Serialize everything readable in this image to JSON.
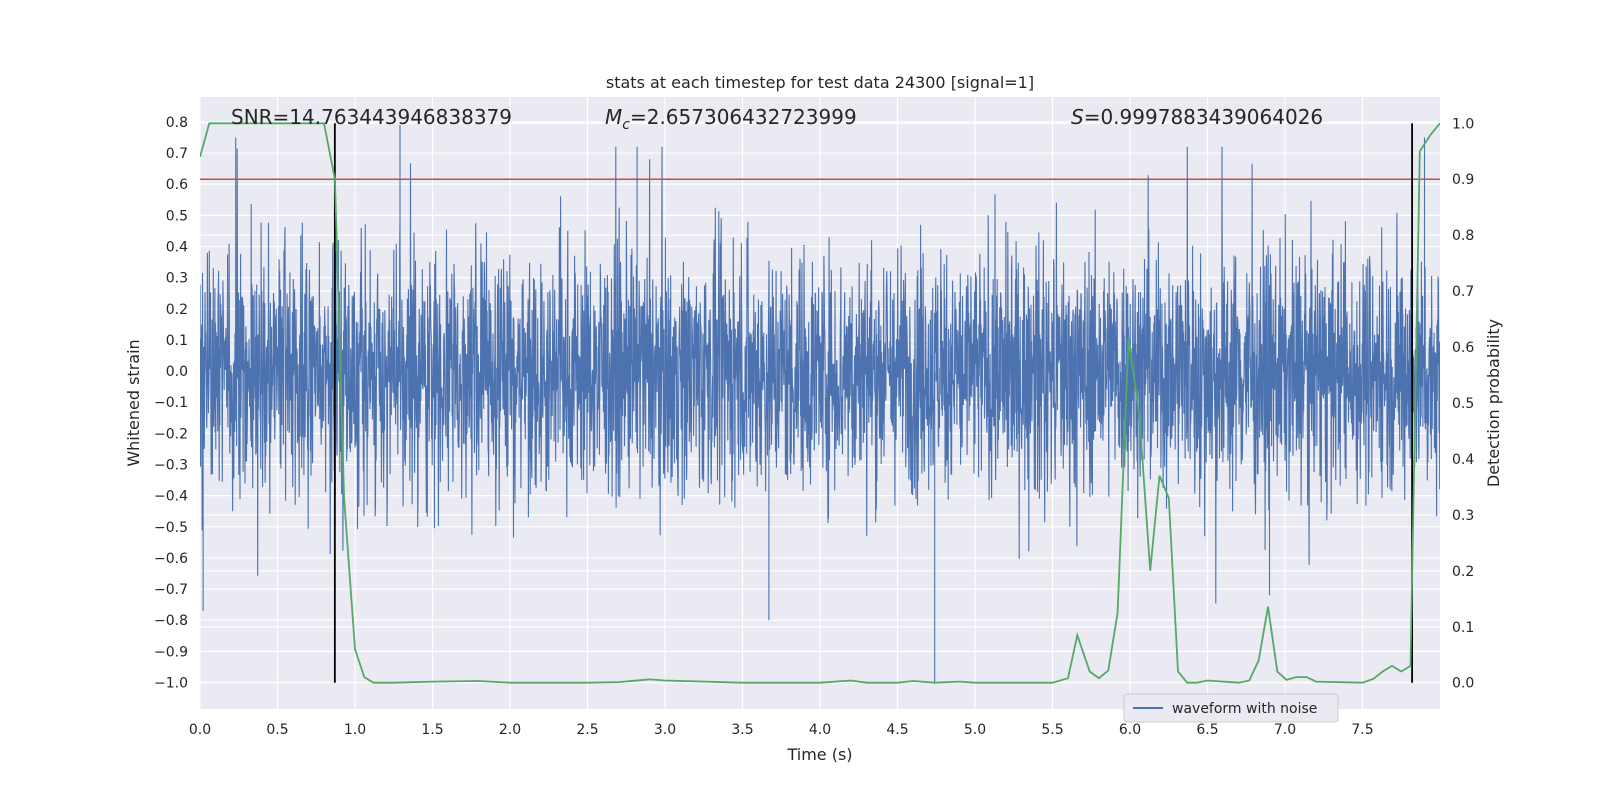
{
  "chart_data": {
    "type": "line",
    "title": "stats at each timestep for test data 24300 [signal=1]",
    "xlabel": "Time (s)",
    "ylabel": "Whitened strain",
    "y2label": "Detection probability",
    "xlim": [
      0.0,
      8.0
    ],
    "ylim": [
      -1.085,
      0.88
    ],
    "y2lim": [
      -0.047,
      1.047
    ],
    "x_ticks": [
      "0.0",
      "0.5",
      "1.0",
      "1.5",
      "2.0",
      "2.5",
      "3.0",
      "3.5",
      "4.0",
      "4.5",
      "5.0",
      "5.5",
      "6.0",
      "6.5",
      "7.0",
      "7.5"
    ],
    "x_tick_values": [
      0.0,
      0.5,
      1.0,
      1.5,
      2.0,
      2.5,
      3.0,
      3.5,
      4.0,
      4.5,
      5.0,
      5.5,
      6.0,
      6.5,
      7.0,
      7.5
    ],
    "y_ticks": [
      "0.8",
      "0.7",
      "0.6",
      "0.5",
      "0.4",
      "0.3",
      "0.2",
      "0.1",
      "0.0",
      "−0.1",
      "−0.2",
      "−0.3",
      "−0.4",
      "−0.5",
      "−0.6",
      "−0.7",
      "−0.8",
      "−0.9",
      "−1.0"
    ],
    "y_tick_values": [
      0.8,
      0.7,
      0.6,
      0.5,
      0.4,
      0.3,
      0.2,
      0.1,
      0.0,
      -0.1,
      -0.2,
      -0.3,
      -0.4,
      -0.5,
      -0.6,
      -0.7,
      -0.8,
      -0.9,
      -1.0
    ],
    "y2_ticks": [
      "1.0",
      "0.9",
      "0.8",
      "0.7",
      "0.6",
      "0.5",
      "0.4",
      "0.3",
      "0.2",
      "0.1",
      "0.0"
    ],
    "y2_tick_values": [
      1.0,
      0.9,
      0.8,
      0.7,
      0.6,
      0.5,
      0.4,
      0.3,
      0.2,
      0.1,
      0.0
    ],
    "annotations": {
      "snr": "SNR=14.763443946838379",
      "mc_symbol": "M",
      "mc_sub": "c",
      "mc_value": "=2.657306432723999",
      "s_symbol": "S",
      "s_value": "=0.9997883439064026"
    },
    "threshold": {
      "y2": 0.9,
      "color": "#c44e52"
    },
    "vlines": [
      0.87,
      7.82
    ],
    "legend": {
      "label": "waveform with noise",
      "placement": "lower-right"
    },
    "grid": true,
    "colors": {
      "waveform": "#4c72b0",
      "probability": "#55a868",
      "vline": "#000000",
      "background": "#eaeaf2"
    },
    "series": [
      {
        "name": "waveform with noise",
        "description_values": "dense whitened-strain noise, bulk within ±0.3, peaks up to about 0.8 and down to about -1.0",
        "extremes": [
          {
            "x": 0.02,
            "y": -0.77
          },
          {
            "x": 0.23,
            "y": 0.75
          },
          {
            "x": 1.29,
            "y": 0.79
          },
          {
            "x": 2.82,
            "y": 0.72
          },
          {
            "x": 3.67,
            "y": -0.8
          },
          {
            "x": 4.74,
            "y": -1.0
          },
          {
            "x": 6.9,
            "y": -0.72
          },
          {
            "x": 7.9,
            "y": 0.75
          }
        ]
      },
      {
        "name": "detection probability",
        "axis": "y2",
        "x": [
          0.0,
          0.06,
          0.12,
          0.18,
          0.25,
          0.31,
          0.37,
          0.43,
          0.49,
          0.55,
          0.61,
          0.68,
          0.74,
          0.8,
          0.87,
          0.93,
          1.0,
          1.06,
          1.12,
          1.18,
          1.25,
          1.5,
          1.8,
          2.0,
          2.5,
          2.7,
          2.9,
          3.0,
          3.5,
          4.0,
          4.2,
          4.3,
          4.5,
          4.6,
          4.74,
          4.9,
          5.0,
          5.5,
          5.6,
          5.66,
          5.74,
          5.8,
          5.86,
          5.92,
          5.99,
          6.06,
          6.13,
          6.19,
          6.25,
          6.31,
          6.37,
          6.43,
          6.5,
          6.7,
          6.77,
          6.83,
          6.89,
          6.95,
          7.01,
          7.07,
          7.14,
          7.2,
          7.5,
          7.57,
          7.63,
          7.69,
          7.75,
          7.81,
          7.87,
          7.94,
          8.0
        ],
        "y": [
          0.94,
          1.0,
          1.0,
          1.0,
          1.0,
          1.0,
          1.0,
          1.0,
          1.0,
          1.0,
          1.0,
          1.0,
          1.0,
          1.0,
          0.9,
          0.33,
          0.06,
          0.01,
          0.0,
          0.0,
          0.0,
          0.002,
          0.003,
          0.0,
          0.0,
          0.001,
          0.006,
          0.004,
          0.0,
          0.0,
          0.004,
          0.0,
          0.0,
          0.003,
          0.0,
          0.002,
          0.0,
          0.0,
          0.008,
          0.085,
          0.02,
          0.008,
          0.022,
          0.125,
          0.615,
          0.48,
          0.2,
          0.37,
          0.33,
          0.02,
          0.0,
          0.0,
          0.004,
          0.0,
          0.004,
          0.04,
          0.136,
          0.02,
          0.005,
          0.01,
          0.01,
          0.002,
          0.0,
          0.007,
          0.02,
          0.03,
          0.02,
          0.03,
          0.95,
          0.98,
          1.0
        ]
      }
    ]
  }
}
